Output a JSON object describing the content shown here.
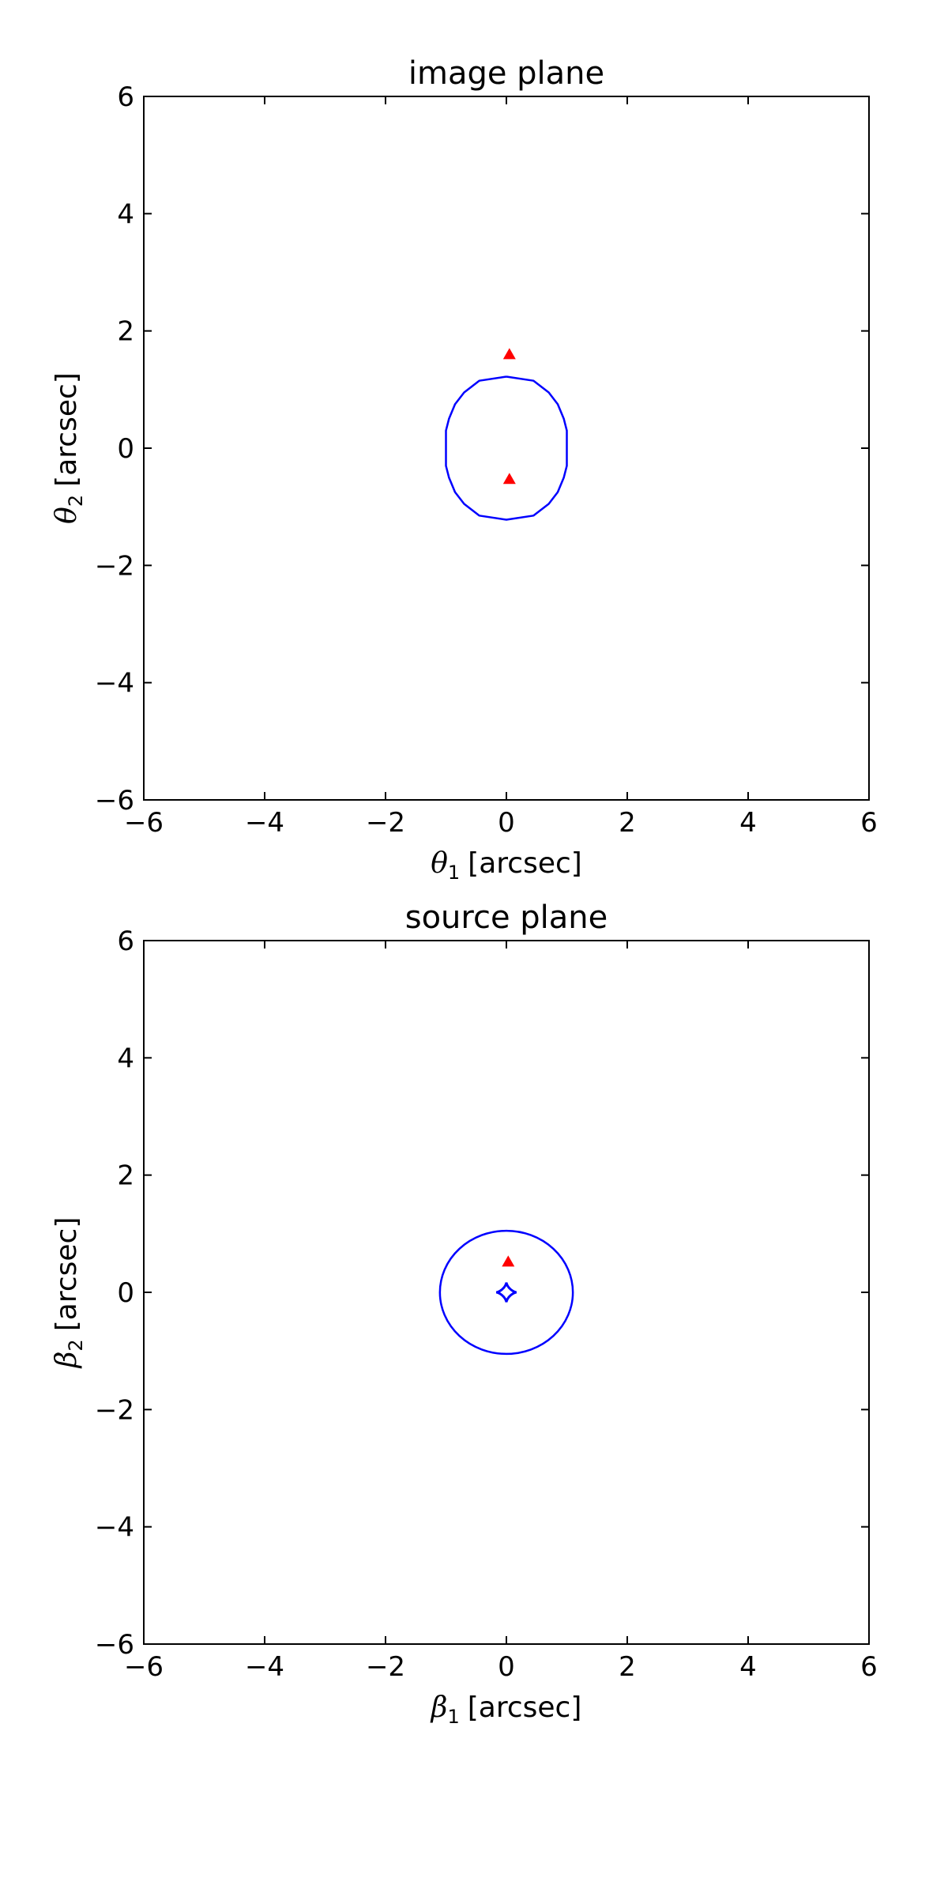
{
  "chart_data": [
    {
      "type": "line",
      "title": "image plane",
      "xlabel": {
        "symbol": "θ",
        "sub": "1",
        "unit": "[arcsec]"
      },
      "ylabel": {
        "symbol": "θ",
        "sub": "2",
        "unit": "[arcsec]"
      },
      "xlim": [
        -6,
        6
      ],
      "ylim": [
        -6,
        6
      ],
      "xticks": [
        -6,
        -4,
        -2,
        0,
        2,
        4,
        6
      ],
      "yticks": [
        -6,
        -4,
        -2,
        0,
        2,
        4,
        6
      ],
      "grid": false,
      "series": [
        {
          "kind": "curve",
          "color": "#0000ff",
          "x": [
            0,
            0.45,
            0.7,
            0.85,
            0.95,
            1.0,
            1.0,
            0.95,
            0.85,
            0.7,
            0.45,
            0,
            -0.45,
            -0.7,
            -0.85,
            -0.95,
            -1.0,
            -1.0,
            -0.95,
            -0.85,
            -0.7,
            -0.45,
            0
          ],
          "y": [
            1.22,
            1.15,
            0.95,
            0.75,
            0.5,
            0.3,
            -0.3,
            -0.5,
            -0.75,
            -0.95,
            -1.15,
            -1.22,
            -1.15,
            -0.95,
            -0.75,
            -0.5,
            -0.3,
            0.3,
            0.5,
            0.75,
            0.95,
            1.15,
            1.22
          ]
        },
        {
          "kind": "points",
          "marker": "triangle",
          "color": "#ff0000",
          "x": [
            0.05,
            0.05
          ],
          "y": [
            1.6,
            -0.53
          ]
        }
      ]
    },
    {
      "type": "line",
      "title": "source plane",
      "xlabel": {
        "symbol": "β",
        "sub": "1",
        "unit": "[arcsec]"
      },
      "ylabel": {
        "symbol": "β",
        "sub": "2",
        "unit": "[arcsec]"
      },
      "xlim": [
        -6,
        6
      ],
      "ylim": [
        -6,
        6
      ],
      "xticks": [
        -6,
        -4,
        -2,
        0,
        2,
        4,
        6
      ],
      "yticks": [
        -6,
        -4,
        -2,
        0,
        2,
        4,
        6
      ],
      "grid": false,
      "series": [
        {
          "kind": "ellipse",
          "color": "#0000ff",
          "cx": 0,
          "cy": 0,
          "rx": 1.1,
          "ry": 1.05
        },
        {
          "kind": "astroid",
          "color": "#0000ff",
          "cx": 0,
          "cy": 0,
          "rx": 0.17,
          "ry": 0.17
        },
        {
          "kind": "points",
          "marker": "triangle",
          "color": "#ff0000",
          "x": [
            0.03
          ],
          "y": [
            0.52
          ]
        }
      ]
    }
  ]
}
